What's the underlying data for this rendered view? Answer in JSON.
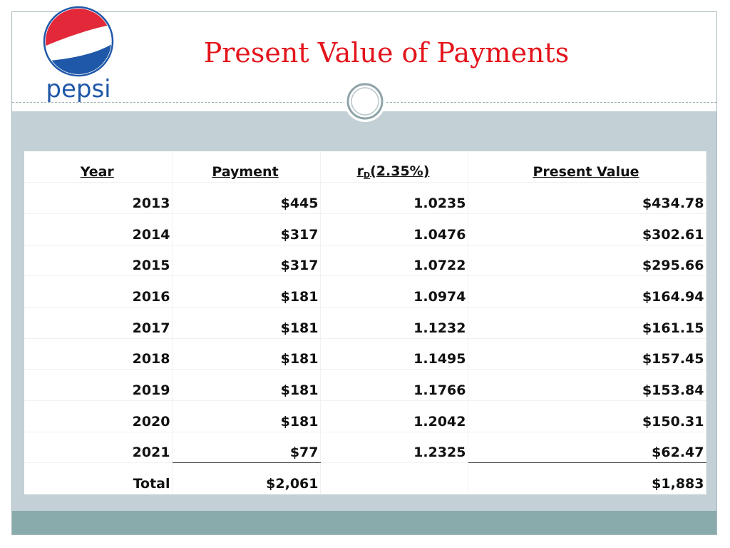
{
  "title": "Present Value of Payments",
  "logo": {
    "text": "pepsi",
    "colors": {
      "red": "#e3283a",
      "blue": "#1f58a8",
      "white": "#ffffff"
    }
  },
  "table": {
    "headers": {
      "year": "Year",
      "payment": "Payment",
      "rate_prefix": "r",
      "rate_sub": "D",
      "rate_suffix": "(2.35%)",
      "pv": "Present Value"
    },
    "rows": [
      {
        "year": "2013",
        "payment": "$445",
        "factor": "1.0235",
        "pv": "$434.78"
      },
      {
        "year": "2014",
        "payment": "$317",
        "factor": "1.0476",
        "pv": "$302.61"
      },
      {
        "year": "2015",
        "payment": "$317",
        "factor": "1.0722",
        "pv": "$295.66"
      },
      {
        "year": "2016",
        "payment": "$181",
        "factor": "1.0974",
        "pv": "$164.94"
      },
      {
        "year": "2017",
        "payment": "$181",
        "factor": "1.1232",
        "pv": "$161.15"
      },
      {
        "year": "2018",
        "payment": "$181",
        "factor": "1.1495",
        "pv": "$157.45"
      },
      {
        "year": "2019",
        "payment": "$181",
        "factor": "1.1766",
        "pv": "$153.84"
      },
      {
        "year": "2020",
        "payment": "$181",
        "factor": "1.2042",
        "pv": "$150.31"
      },
      {
        "year": "2021",
        "payment": "$77",
        "factor": "1.2325",
        "pv": "$62.47"
      }
    ],
    "total": {
      "label": "Total",
      "payment": "$2,061",
      "factor": "",
      "pv": "$1,883"
    }
  },
  "colors": {
    "title": "#e3131b",
    "band": "#c3d0d5",
    "footer": "#8aabab"
  }
}
